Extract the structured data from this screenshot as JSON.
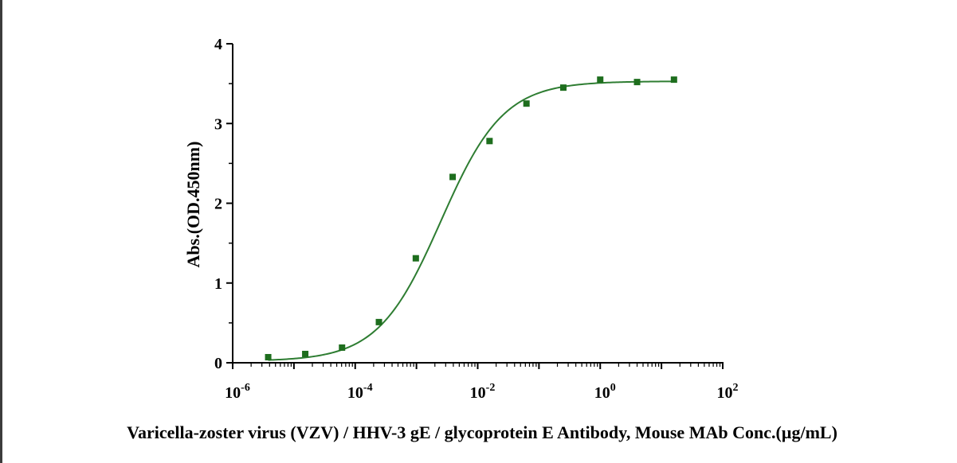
{
  "chart_data": {
    "type": "scatter",
    "title": "",
    "xlabel": "Varicella-zoster virus (VZV) / HHV-3 gE / glycoprotein E Antibody, Mouse MAb Conc.(µg/mL)",
    "ylabel": "Abs.(OD.450nm)",
    "x_scale": "log10",
    "xlim": [
      1e-06,
      100
    ],
    "ylim": [
      0,
      4
    ],
    "x_ticks": [
      {
        "value": 1e-06,
        "base": "10",
        "exp": "-6"
      },
      {
        "value": 0.0001,
        "base": "10",
        "exp": "-4"
      },
      {
        "value": 0.01,
        "base": "10",
        "exp": "-2"
      },
      {
        "value": 1,
        "base": "10",
        "exp": "0"
      },
      {
        "value": 100,
        "base": "10",
        "exp": "2"
      }
    ],
    "y_ticks": [
      "0",
      "1",
      "2",
      "3",
      "4"
    ],
    "grid": false,
    "series": [
      {
        "color": "#1e6e1e",
        "marker": "square",
        "x": [
          3.8e-06,
          1.53e-05,
          6.1e-05,
          0.000244,
          0.000977,
          0.0039,
          0.0156,
          0.0625,
          0.25,
          1,
          4,
          16
        ],
        "y": [
          0.07,
          0.11,
          0.19,
          0.51,
          1.31,
          2.33,
          2.78,
          3.25,
          3.45,
          3.55,
          3.52,
          3.55
        ]
      }
    ],
    "fit_curve": {
      "model": "4PL",
      "color": "#2e7d32",
      "bottom": 0.02,
      "top": 3.53,
      "ec50": 0.0025,
      "hill": 0.85
    }
  }
}
